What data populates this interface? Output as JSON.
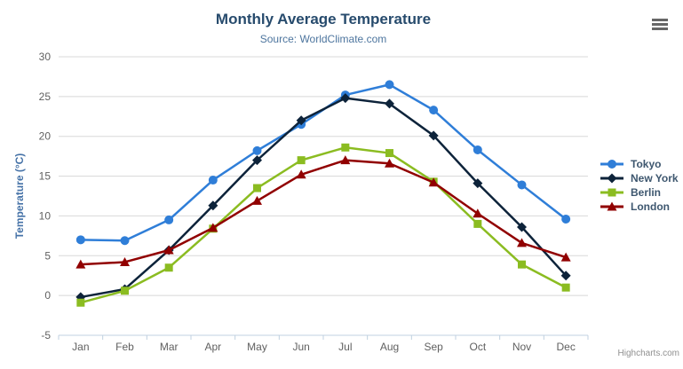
{
  "chart_data": {
    "type": "line",
    "title": "Monthly Average Temperature",
    "subtitle": "Source: WorldClimate.com",
    "categories": [
      "Jan",
      "Feb",
      "Mar",
      "Apr",
      "May",
      "Jun",
      "Jul",
      "Aug",
      "Sep",
      "Oct",
      "Nov",
      "Dec"
    ],
    "xlabel": "",
    "ylabel": "Temperature (°C)",
    "ylim": [
      -5,
      30
    ],
    "ytick_step": 5,
    "yticks": [
      -5,
      0,
      5,
      10,
      15,
      20,
      25,
      30
    ],
    "grid": true,
    "legend_position": "right",
    "series": [
      {
        "name": "Tokyo",
        "color": "#2f7ed8",
        "marker": "circle",
        "values": [
          7.0,
          6.9,
          9.5,
          14.5,
          18.2,
          21.5,
          25.2,
          26.5,
          23.3,
          18.3,
          13.9,
          9.6
        ]
      },
      {
        "name": "New York",
        "color": "#0d233a",
        "marker": "diamond",
        "values": [
          -0.2,
          0.8,
          5.7,
          11.3,
          17.0,
          22.0,
          24.8,
          24.1,
          20.1,
          14.1,
          8.6,
          2.5
        ]
      },
      {
        "name": "Berlin",
        "color": "#8bbc21",
        "marker": "square",
        "values": [
          -0.9,
          0.6,
          3.5,
          8.4,
          13.5,
          17.0,
          18.6,
          17.9,
          14.3,
          9.0,
          3.9,
          1.0
        ]
      },
      {
        "name": "London",
        "color": "#910000",
        "marker": "triangle",
        "values": [
          3.9,
          4.2,
          5.7,
          8.5,
          11.9,
          15.2,
          17.0,
          16.6,
          14.2,
          10.3,
          6.6,
          4.8
        ]
      }
    ],
    "colors": {
      "title": "#274b6d",
      "subtitle": "#4d759e",
      "axis_labels": "#606060",
      "y_axis_title": "#4572a7",
      "gridline": "#d8d8d8",
      "axis_line": "#c0d0e0"
    }
  },
  "ui": {
    "credits": "Highcharts.com",
    "export_menu_icon": "hamburger-icon"
  }
}
